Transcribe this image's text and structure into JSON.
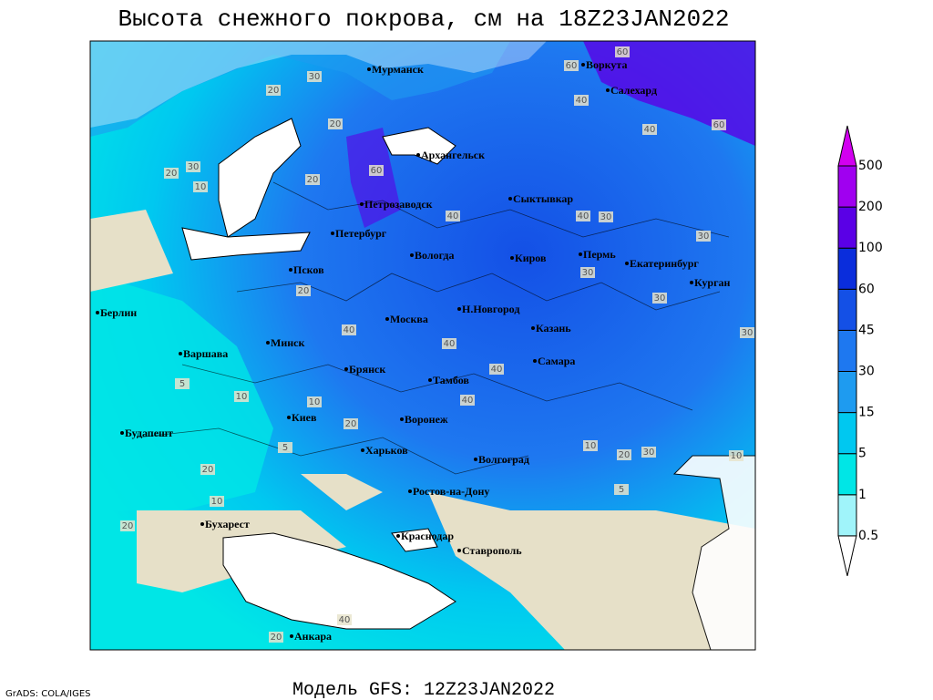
{
  "title": "Высота снежного покрова, см на 18Z23JAN2022",
  "footer": "Модель GFS: 12Z23JAN2022",
  "credit": "GrADS: COLA/IGES",
  "colorbar": {
    "levels": [
      0.5,
      1,
      5,
      15,
      30,
      45,
      60,
      100,
      200,
      500
    ],
    "colors": [
      "#ffffff",
      "#a0f4fa",
      "#00e6e6",
      "#00c8f0",
      "#1e9bf0",
      "#1e78f0",
      "#1450e6",
      "#0a2ddc",
      "#5a00e6",
      "#a000f0",
      "#d200f0"
    ]
  },
  "cities": [
    "Мурманск",
    "Воркута",
    "Салехард",
    "Архангельск",
    "Сыктывкар",
    "Петрозаводск",
    "Петербург",
    "Вологда",
    "Киров",
    "Пермь",
    "Екатеринбург",
    "Курган",
    "Псков",
    "Берлин",
    "Н.Новгород",
    "Москва",
    "Казань",
    "Варшава",
    "Минск",
    "Самара",
    "Брянск",
    "Тамбов",
    "Киев",
    "Воронеж",
    "Будапешт",
    "Харьков",
    "Волгоград",
    "Ростов-на-Дону",
    "Бухарест",
    "Краснодар",
    "Ставрополь",
    "Анкара"
  ],
  "contour_labels": [
    60,
    60,
    40,
    40,
    60,
    20,
    30,
    20,
    30,
    10,
    20,
    20,
    60,
    40,
    40,
    30,
    30,
    30,
    20,
    40,
    40,
    40,
    40,
    30,
    30,
    10,
    10,
    20,
    5,
    10,
    20,
    30,
    10,
    20,
    10,
    20,
    5,
    40,
    20,
    5
  ]
}
